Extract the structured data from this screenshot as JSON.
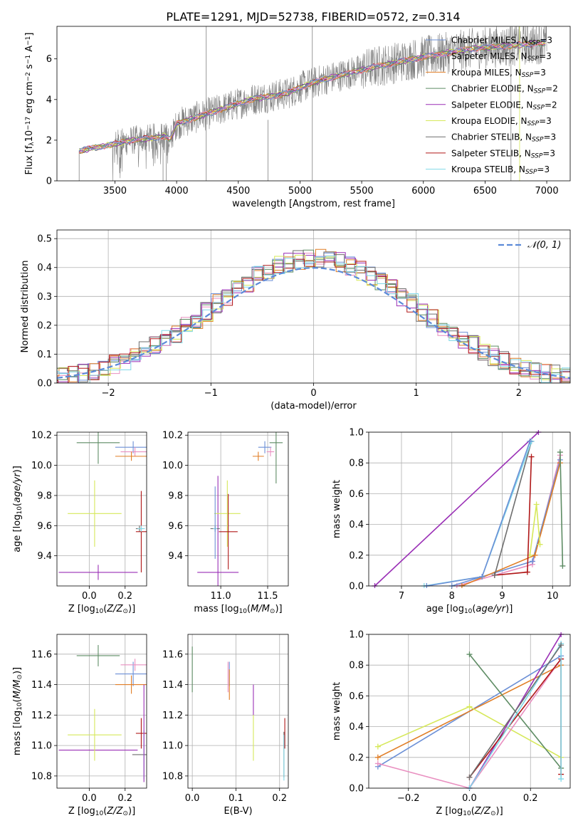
{
  "title": "PLATE=1291, MJD=52738, FIBERID=0572, z=0.314",
  "colors": {
    "chabrier_miles": "#6b8fd6",
    "salpeter_miles": "#e98fc0",
    "kroupa_miles": "#e07d25",
    "chabrier_elodie": "#5e8c64",
    "salpeter_elodie": "#9a2fb6",
    "kroupa_elodie": "#d6e85a",
    "chabrier_stelib": "#6e6e6e",
    "salpeter_stelib": "#b01818",
    "kroupa_stelib": "#80d8e8",
    "gauss": "#5b8ad8",
    "data": "#808080"
  },
  "chart_data": [
    {
      "id": "spectrum",
      "type": "line",
      "xlabel": "wavelength [Angstrom, rest frame]",
      "ylabel": "Flux [f_λ 10^-17 erg cm^-2 s^-1 A^-1]",
      "xlim": [
        3030,
        7190
      ],
      "ylim": [
        0,
        7.6
      ],
      "xticks": [
        3500,
        4000,
        4500,
        5000,
        5500,
        6000,
        6500,
        7000
      ],
      "yticks": [
        0,
        2,
        4,
        6
      ],
      "legend_position": "upper right",
      "legend": [
        {
          "key": "chabrier_miles",
          "label": "Chabrier MILES, N",
          "sub": "SSP",
          "tail": "=3"
        },
        {
          "key": "salpeter_miles",
          "label": "Salpeter MILES, N",
          "sub": "SSP",
          "tail": "=3"
        },
        {
          "key": "kroupa_miles",
          "label": "Kroupa MILES, N",
          "sub": "SSP",
          "tail": "=3"
        },
        {
          "key": "chabrier_elodie",
          "label": "Chabrier ELODIE, N",
          "sub": "SSP",
          "tail": "=2"
        },
        {
          "key": "salpeter_elodie",
          "label": "Salpeter ELODIE, N",
          "sub": "SSP",
          "tail": "=2"
        },
        {
          "key": "kroupa_elodie",
          "label": "Kroupa ELODIE, N",
          "sub": "SSP",
          "tail": "=3"
        },
        {
          "key": "chabrier_stelib",
          "label": "Chabrier STELIB, N",
          "sub": "SSP",
          "tail": "=3"
        },
        {
          "key": "salpeter_stelib",
          "label": "Salpeter STELIB, N",
          "sub": "SSP",
          "tail": "=3"
        },
        {
          "key": "kroupa_stelib",
          "label": "Kroupa STELIB, N",
          "sub": "SSP",
          "tail": "=3"
        }
      ],
      "continuum": {
        "x": [
          3210,
          3300,
          3400,
          3500,
          3600,
          3700,
          3800,
          3900,
          3950,
          4000,
          4100,
          4200,
          4300,
          4400,
          4500,
          4600,
          4700,
          4800,
          4900,
          5000,
          5200,
          5400,
          5600,
          5800,
          6000,
          6200,
          6400,
          6600,
          6800,
          7000
        ],
        "y": [
          1.45,
          1.6,
          1.7,
          1.8,
          1.95,
          2.05,
          2.1,
          2.2,
          2.05,
          2.8,
          3.0,
          3.2,
          3.4,
          3.6,
          3.8,
          4.0,
          4.1,
          4.2,
          4.3,
          4.6,
          5.0,
          5.3,
          5.6,
          5.85,
          6.1,
          6.3,
          6.5,
          6.6,
          6.7,
          6.8
        ]
      }
    },
    {
      "id": "residuals",
      "type": "line",
      "xlabel": "(data-model)/error",
      "ylabel": "Normed distribution",
      "xlim": [
        -2.5,
        2.5
      ],
      "ylim": [
        0,
        0.53
      ],
      "xticks": [
        -2,
        -1,
        0,
        1,
        2
      ],
      "yticks": [
        0.0,
        0.1,
        0.2,
        0.3,
        0.4,
        0.5
      ],
      "grid": true,
      "legend_position": "upper right",
      "gauss_label": "𝒩(0, 1)"
    },
    {
      "id": "age_Z",
      "type": "scatter",
      "xlabel": "Z [log10(Z/Z⊙)]",
      "ylabel": "age [log10(age/yr)]",
      "xlim": [
        -0.18,
        0.32
      ],
      "ylim": [
        9.2,
        10.22
      ],
      "xticks": [
        0.0,
        0.2
      ],
      "yticks": [
        9.4,
        9.6,
        9.8,
        10.0,
        10.2
      ],
      "grid": true,
      "points": [
        {
          "key": "chabrier_miles",
          "x": 0.245,
          "y": 10.12,
          "xerr": 0.1,
          "yerr": 0.04
        },
        {
          "key": "salpeter_miles",
          "x": 0.255,
          "y": 10.09,
          "xerr": 0.08,
          "yerr": 0.03
        },
        {
          "key": "kroupa_miles",
          "x": 0.235,
          "y": 10.06,
          "xerr": 0.09,
          "yerr": 0.03
        },
        {
          "key": "chabrier_elodie",
          "x": 0.05,
          "y": 10.15,
          "xerr": 0.12,
          "yerr": 0.14
        },
        {
          "key": "salpeter_elodie",
          "x": 0.05,
          "y": 9.29,
          "xerr": 0.22,
          "yerr": 0.05
        },
        {
          "key": "kroupa_elodie",
          "x": 0.03,
          "y": 9.68,
          "xerr": 0.15,
          "yerr": 0.22
        },
        {
          "key": "chabrier_stelib",
          "x": 0.28,
          "y": 9.58,
          "xerr": 0.02,
          "yerr": 0.02
        },
        {
          "key": "salpeter_stelib",
          "x": 0.29,
          "y": 9.56,
          "xerr": 0.03,
          "yerr": 0.27
        },
        {
          "key": "kroupa_stelib",
          "x": 0.29,
          "y": 9.58,
          "xerr": 0.02,
          "yerr": 0.02
        }
      ]
    },
    {
      "id": "age_mass",
      "type": "scatter",
      "xlabel": "mass [log10(M/M⊙)]",
      "ylabel": "",
      "xlim": [
        10.65,
        11.72
      ],
      "ylim": [
        9.2,
        10.22
      ],
      "xticks": [
        11.0,
        11.5
      ],
      "yticks": [
        9.4,
        9.6,
        9.8,
        10.0,
        10.2
      ],
      "grid": true,
      "points": [
        {
          "key": "chabrier_miles",
          "x": 11.47,
          "y": 10.12,
          "xerr": 0.07,
          "yerr": 0.04
        },
        {
          "key": "salpeter_miles",
          "x": 11.53,
          "y": 10.09,
          "xerr": 0.04,
          "yerr": 0.03
        },
        {
          "key": "kroupa_miles",
          "x": 11.4,
          "y": 10.06,
          "xerr": 0.06,
          "yerr": 0.03
        },
        {
          "key": "chabrier_elodie",
          "x": 11.59,
          "y": 10.15,
          "xerr": 0.07,
          "yerr": 0.27
        },
        {
          "key": "salpeter_elodie",
          "x": 10.97,
          "y": 9.29,
          "xerr": 0.22,
          "yerr": 0.64
        },
        {
          "key": "kroupa_elodie",
          "x": 11.07,
          "y": 9.68,
          "xerr": 0.14,
          "yerr": 0.22
        },
        {
          "key": "chabrier_stelib",
          "x": 10.94,
          "y": 9.58,
          "xerr": 0.05,
          "yerr": 0.02
        },
        {
          "key": "salpeter_stelib",
          "x": 11.08,
          "y": 9.56,
          "xerr": 0.1,
          "yerr": 0.25
        },
        {
          "key": "kroupa_stelib",
          "x": 10.94,
          "y": 9.58,
          "xerr": 0.02,
          "yerr": 0.02
        },
        {
          "key": "chabrier_miles",
          "x": 10.94,
          "y": 9.62,
          "xerr": 0.0,
          "yerr": 0.24
        }
      ]
    },
    {
      "id": "weight_age",
      "type": "line",
      "xlabel": "age [log10(age/yr)]",
      "ylabel": "mass weight",
      "xlim": [
        6.35,
        10.35
      ],
      "ylim": [
        0,
        1.0
      ],
      "xticks": [
        7,
        8,
        9,
        10
      ],
      "yticks": [
        0.0,
        0.2,
        0.4,
        0.6,
        0.8,
        1.0
      ],
      "grid": true,
      "series": [
        {
          "key": "salpeter_elodie",
          "x": [
            6.47,
            9.72
          ],
          "y": [
            0.0,
            1.0
          ]
        },
        {
          "key": "salpeter_miles",
          "x": [
            8.1,
            9.6,
            10.15
          ],
          "y": [
            0.0,
            0.14,
            0.85
          ]
        },
        {
          "key": "chabrier_miles",
          "x": [
            8.0,
            9.6,
            10.15
          ],
          "y": [
            0.0,
            0.16,
            0.82
          ]
        },
        {
          "key": "kroupa_miles",
          "x": [
            8.2,
            9.65,
            10.15
          ],
          "y": [
            0.0,
            0.2,
            0.8
          ]
        },
        {
          "key": "chabrier_elodie",
          "x": [
            10.15,
            10.2
          ],
          "y": [
            0.87,
            0.13
          ]
        },
        {
          "key": "kroupa_elodie",
          "x": [
            9.55,
            9.68,
            9.75
          ],
          "y": [
            0.2,
            0.53,
            0.27
          ]
        },
        {
          "key": "salpeter_stelib",
          "x": [
            8.85,
            9.5,
            9.58
          ],
          "y": [
            0.07,
            0.09,
            0.84
          ]
        },
        {
          "key": "chabrier_stelib",
          "x": [
            8.85,
            9.58
          ],
          "y": [
            0.07,
            0.94
          ]
        },
        {
          "key": "kroupa_stelib",
          "x": [
            7.45,
            8.6,
            9.58
          ],
          "y": [
            0.0,
            0.06,
            0.94
          ]
        },
        {
          "key": "chabrier_miles",
          "x": [
            7.5,
            8.6,
            9.55
          ],
          "y": [
            0.0,
            0.06,
            0.94
          ]
        }
      ]
    },
    {
      "id": "mass_Z",
      "type": "scatter",
      "xlabel": "Z [log10(Z/Z⊙)]",
      "ylabel": "mass [log10(M/M⊙)]",
      "xlim": [
        -0.18,
        0.32
      ],
      "ylim": [
        10.72,
        11.73
      ],
      "xticks": [
        0.0,
        0.2
      ],
      "yticks": [
        10.8,
        11.0,
        11.2,
        11.4,
        11.6
      ],
      "grid": true,
      "points": [
        {
          "key": "chabrier_miles",
          "x": 0.245,
          "y": 11.47,
          "xerr": 0.1,
          "yerr": 0.08
        },
        {
          "key": "salpeter_miles",
          "x": 0.255,
          "y": 11.53,
          "xerr": 0.08,
          "yerr": 0.04
        },
        {
          "key": "kroupa_miles",
          "x": 0.235,
          "y": 11.4,
          "xerr": 0.09,
          "yerr": 0.06
        },
        {
          "key": "chabrier_elodie",
          "x": 0.05,
          "y": 11.59,
          "xerr": 0.12,
          "yerr": 0.07
        },
        {
          "key": "salpeter_elodie",
          "x": 0.05,
          "y": 10.97,
          "xerr": 0.22,
          "yerr": 0.0
        },
        {
          "key": "kroupa_elodie",
          "x": 0.03,
          "y": 11.07,
          "xerr": 0.15,
          "yerr": 0.17
        },
        {
          "key": "chabrier_stelib",
          "x": 0.28,
          "y": 10.94,
          "xerr": 0.04,
          "yerr": 0.0
        },
        {
          "key": "salpeter_stelib",
          "x": 0.29,
          "y": 11.08,
          "xerr": 0.03,
          "yerr": 0.1
        },
        {
          "key": "kroupa_stelib",
          "x": 0.305,
          "y": 10.94,
          "xerr": 0.0,
          "yerr": 0.16
        },
        {
          "key": "salpeter_elodie",
          "x": 0.305,
          "y": 11.08,
          "xerr": 0.0,
          "yerr": 0.32
        }
      ]
    },
    {
      "id": "mass_ebv",
      "type": "scatter",
      "xlabel": "E(B-V)",
      "ylabel": "",
      "xlim": [
        -0.01,
        0.22
      ],
      "ylim": [
        10.72,
        11.73
      ],
      "xticks": [
        0.0,
        0.1,
        0.2
      ],
      "yticks": [
        10.8,
        11.0,
        11.2,
        11.4,
        11.6
      ],
      "grid": true,
      "points": [
        {
          "key": "chabrier_miles",
          "x": 0.085,
          "y": 11.47,
          "xerr": 0.0,
          "yerr": 0.08
        },
        {
          "key": "salpeter_miles",
          "x": 0.082,
          "y": 11.45,
          "xerr": 0.0,
          "yerr": 0.1
        },
        {
          "key": "kroupa_miles",
          "x": 0.085,
          "y": 11.4,
          "xerr": 0.0,
          "yerr": 0.1
        },
        {
          "key": "chabrier_elodie",
          "x": 0.0,
          "y": 11.5,
          "xerr": 0.0,
          "yerr": 0.15
        },
        {
          "key": "salpeter_elodie",
          "x": 0.14,
          "y": 11.3,
          "xerr": 0.0,
          "yerr": 0.1
        },
        {
          "key": "kroupa_elodie",
          "x": 0.14,
          "y": 11.05,
          "xerr": 0.0,
          "yerr": 0.15
        },
        {
          "key": "chabrier_stelib",
          "x": 0.21,
          "y": 10.94,
          "xerr": 0.0,
          "yerr": 0.15
        },
        {
          "key": "salpeter_stelib",
          "x": 0.212,
          "y": 11.08,
          "xerr": 0.0,
          "yerr": 0.1
        },
        {
          "key": "kroupa_stelib",
          "x": 0.21,
          "y": 10.92,
          "xerr": 0.0,
          "yerr": 0.15
        }
      ]
    },
    {
      "id": "weight_Z",
      "type": "line",
      "xlabel": "Z [log10(Z/Z⊙)]",
      "ylabel": "mass weight",
      "xlim": [
        -0.33,
        0.33
      ],
      "ylim": [
        0,
        1.0
      ],
      "xticks": [
        -0.2,
        0.0,
        0.2
      ],
      "yticks": [
        0.0,
        0.2,
        0.4,
        0.6,
        0.8,
        1.0
      ],
      "grid": true,
      "series": [
        {
          "key": "chabrier_miles",
          "x": [
            -0.3,
            0.3
          ],
          "y": [
            0.14,
            0.86
          ]
        },
        {
          "key": "kroupa_miles",
          "x": [
            -0.3,
            0.3
          ],
          "y": [
            0.2,
            0.8
          ]
        },
        {
          "key": "kroupa_elodie",
          "x": [
            -0.3,
            0.0,
            0.3
          ],
          "y": [
            0.27,
            0.53,
            0.2
          ]
        },
        {
          "key": "salpeter_miles",
          "x": [
            -0.3,
            0.0,
            0.3
          ],
          "y": [
            0.16,
            0.0,
            0.84
          ]
        },
        {
          "key": "chabrier_elodie",
          "x": [
            0.0,
            0.3
          ],
          "y": [
            0.87,
            0.13
          ]
        },
        {
          "key": "salpeter_elodie",
          "x": [
            0.0,
            0.3
          ],
          "y": [
            0.0,
            1.0
          ]
        },
        {
          "key": "salpeter_stelib",
          "x": [
            0.0,
            0.3,
            0.3
          ],
          "y": [
            0.07,
            0.84,
            0.09
          ]
        },
        {
          "key": "kroupa_stelib",
          "x": [
            0.0,
            0.3,
            0.3
          ],
          "y": [
            0.0,
            0.94,
            0.06
          ]
        },
        {
          "key": "chabrier_stelib",
          "x": [
            0.0,
            0.3
          ],
          "y": [
            0.07,
            0.93
          ]
        }
      ]
    }
  ]
}
